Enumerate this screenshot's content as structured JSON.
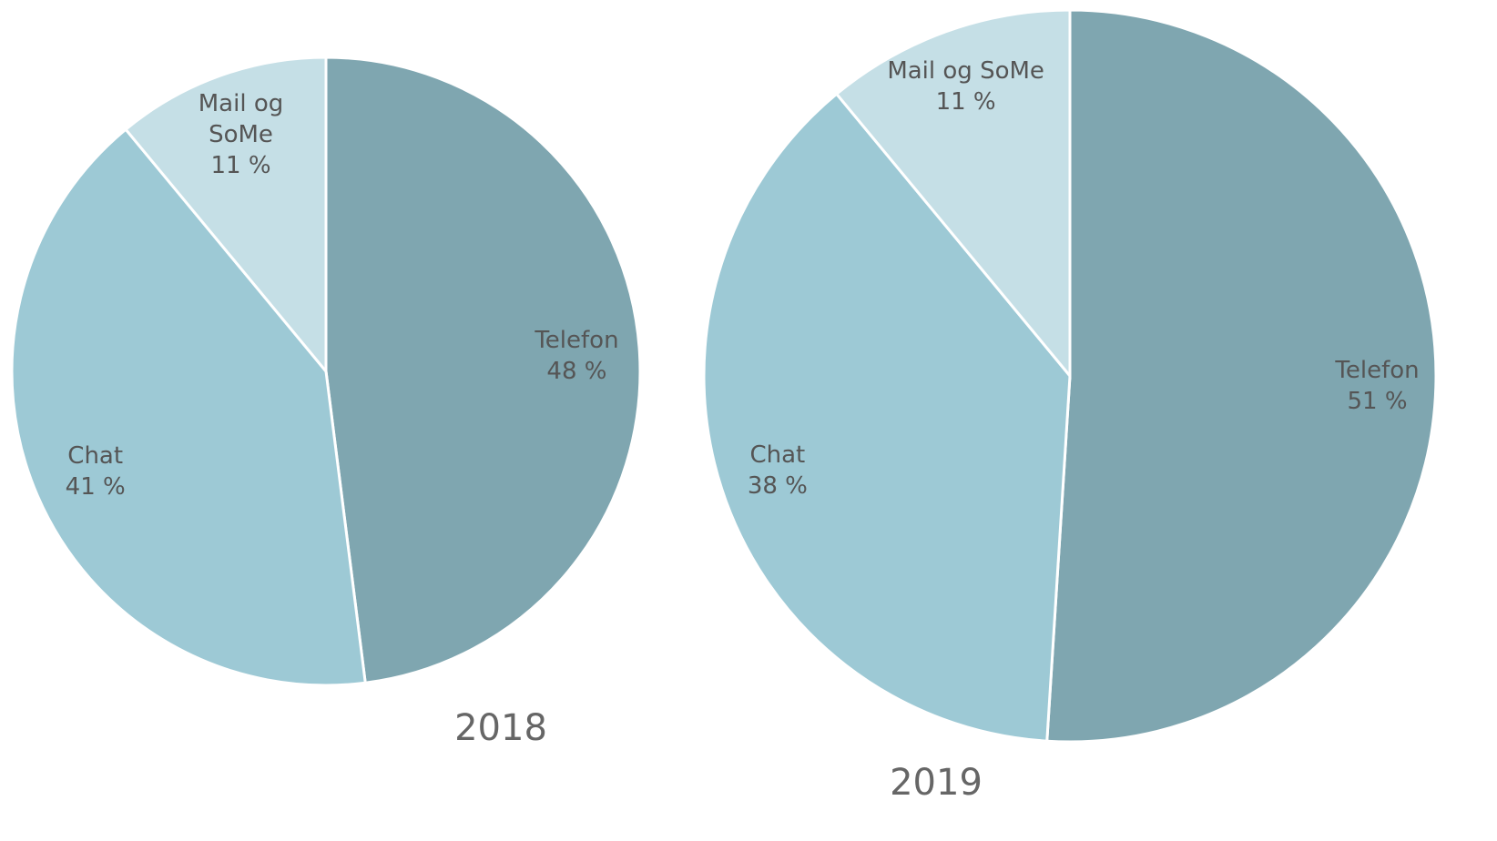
{
  "chart_data": [
    {
      "type": "pie",
      "title": "2018",
      "categories": [
        "Telefon",
        "Chat",
        "Mail og SoMe"
      ],
      "values": [
        48,
        41,
        11
      ],
      "value_labels": [
        "48 %",
        "41 %",
        "11 %"
      ],
      "colors": [
        "#7fa6b0",
        "#9dc9d5",
        "#c5dfe6"
      ]
    },
    {
      "type": "pie",
      "title": "2019",
      "categories": [
        "Telefon",
        "Chat",
        "Mail og SoMe"
      ],
      "values": [
        51,
        38,
        11
      ],
      "value_labels": [
        "51 %",
        "38 %",
        "11 %"
      ],
      "colors": [
        "#7fa6b0",
        "#9dc9d5",
        "#c5dfe6"
      ]
    }
  ]
}
